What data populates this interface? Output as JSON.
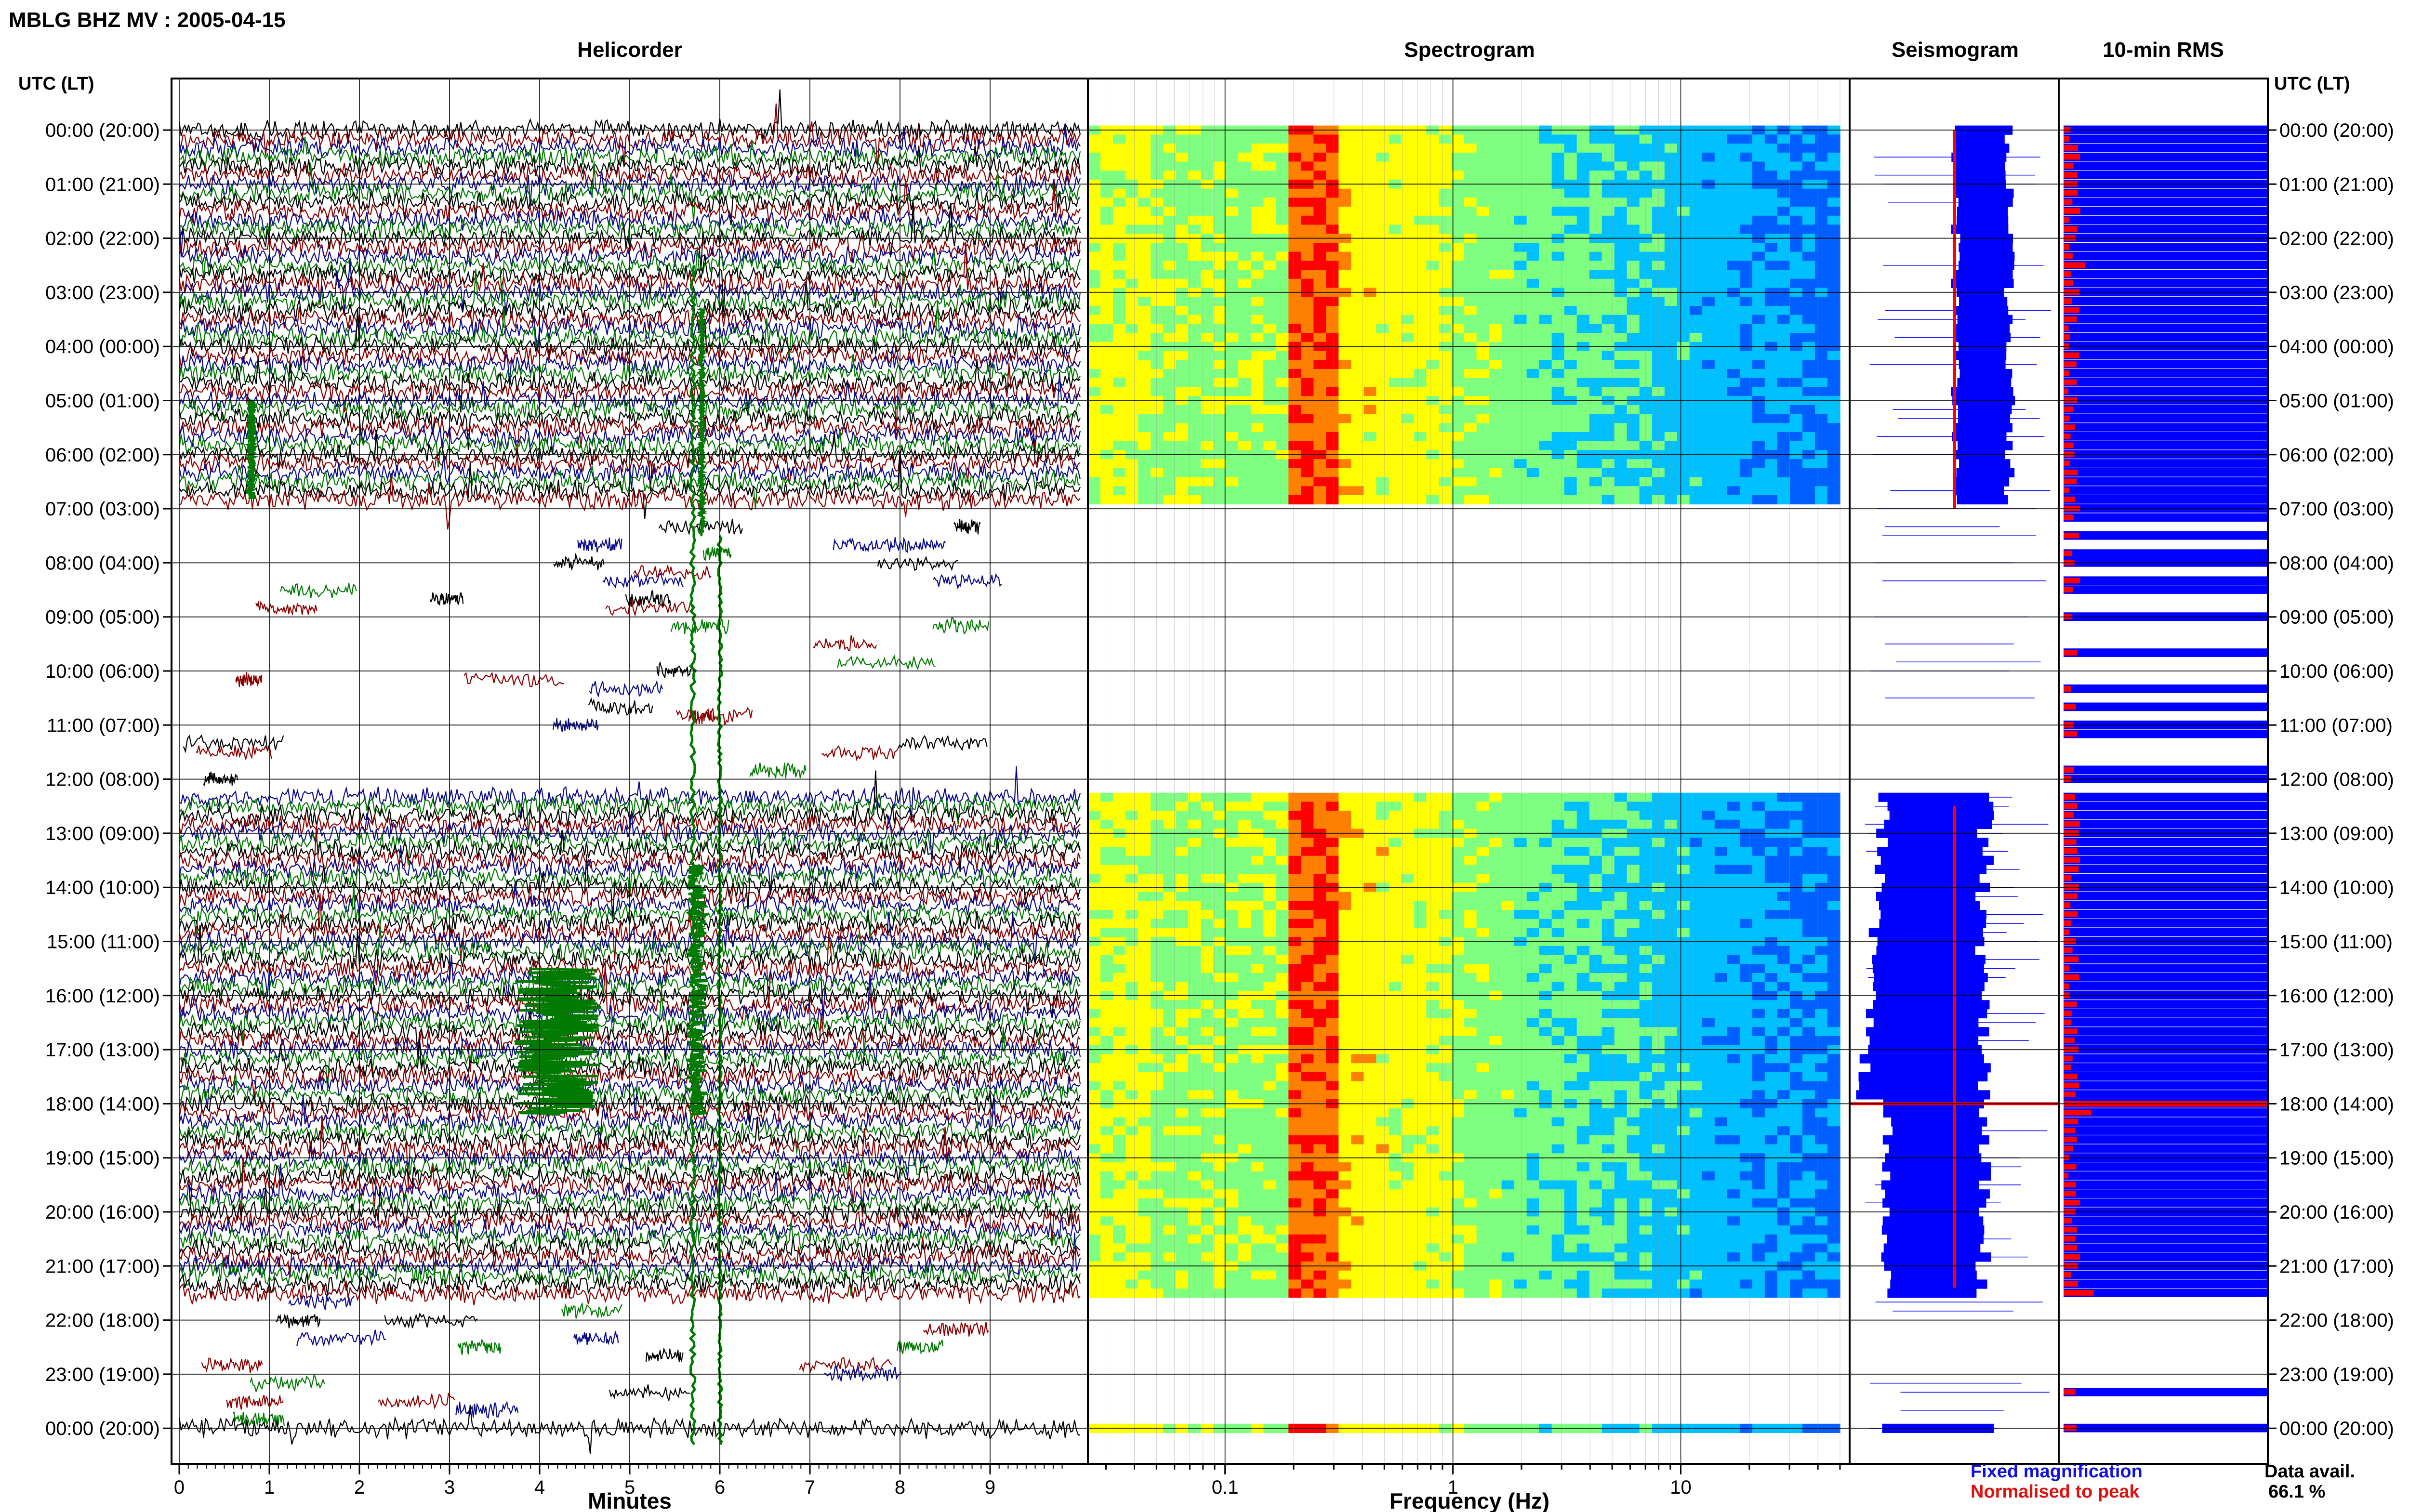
{
  "header": {
    "title": "MBLG BHZ MV : 2005-04-15"
  },
  "panels": {
    "helicorder": "Helicorder",
    "spectrogram": "Spectrogram",
    "seismogram": "Seismogram",
    "rms": "10-min RMS"
  },
  "axis_labels": {
    "utc_left": "UTC (LT)",
    "utc_right": "UTC (LT)",
    "minutes": "Minutes",
    "frequency": "Frequency (Hz)"
  },
  "legend": {
    "fixed": "Fixed magnification",
    "normalised": "Normalised to peak",
    "fixed_color": "#1010e0",
    "normalised_color": "#e01010"
  },
  "availability": {
    "label": "Data avail.",
    "value": "66.1 %"
  },
  "colors": {
    "trace_black": "#000000",
    "trace_red": "#8b0000",
    "trace_blue": "#0a0a8c",
    "trace_green": "#007a00",
    "blue_fill": "#0000ff",
    "red_mark": "#ff0000"
  },
  "chart_data": [
    {
      "type": "line",
      "title": "Helicorder",
      "xlabel": "Minutes",
      "ylabel": "UTC (LT)",
      "xlim": [
        0,
        10
      ],
      "x_ticks": [
        0,
        1,
        2,
        3,
        4,
        5,
        6,
        7,
        8,
        9
      ],
      "hour_labels": [
        "00:00 (20:00)",
        "01:00 (21:00)",
        "02:00 (22:00)",
        "03:00 (23:00)",
        "04:00 (00:00)",
        "05:00 (01:00)",
        "06:00 (02:00)",
        "07:00 (03:00)",
        "08:00 (04:00)",
        "09:00 (05:00)",
        "10:00 (06:00)",
        "11:00 (07:00)",
        "12:00 (08:00)",
        "13:00 (09:00)",
        "14:00 (10:00)",
        "15:00 (11:00)",
        "16:00 (12:00)",
        "17:00 (13:00)",
        "18:00 (14:00)",
        "19:00 (15:00)",
        "20:00 (16:00)",
        "21:00 (17:00)",
        "22:00 (18:00)",
        "23:00 (19:00)",
        "00:00 (20:00)"
      ],
      "trace_colors": [
        "#000000",
        "#8b0000",
        "#0a0a8c",
        "#007a00"
      ],
      "data_gaps_hours": [
        [
          7.0,
          12.3
        ],
        [
          21.6,
          24.0
        ]
      ]
    },
    {
      "type": "heatmap",
      "title": "Spectrogram",
      "xlabel": "Frequency (Hz)",
      "x_scale": "log",
      "xlim": [
        0.025,
        50
      ],
      "x_ticks": [
        0.1,
        1,
        10
      ],
      "colormap": [
        "#0000aa",
        "#0060ff",
        "#00c0ff",
        "#7fff80",
        "#ffff00",
        "#ff8000",
        "#ff0000"
      ],
      "peak_band_hz": [
        0.2,
        0.3
      ],
      "data_gaps_hours": [
        [
          7.0,
          12.3
        ],
        [
          21.6,
          24.0
        ]
      ]
    },
    {
      "type": "area",
      "title": "Seismogram",
      "series": [
        {
          "name": "Fixed magnification",
          "color": "#0000ff"
        },
        {
          "name": "Normalised to peak",
          "color": "#ff0000"
        }
      ]
    },
    {
      "type": "bar",
      "title": "10-min RMS",
      "series": [
        {
          "name": "Fixed magnification",
          "color": "#0000ff"
        },
        {
          "name": "Normalised to peak",
          "color": "#ff0000"
        }
      ]
    }
  ]
}
